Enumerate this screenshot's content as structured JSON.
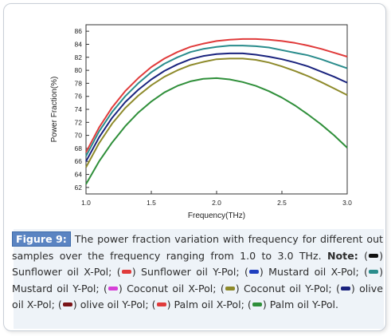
{
  "chart_data": {
    "type": "line",
    "xlabel": "Frequency(THz)",
    "ylabel": "Power Fraction(%)",
    "xlim": [
      1.0,
      3.0
    ],
    "ylim": [
      61,
      87
    ],
    "xticks": [
      1.0,
      1.5,
      2.0,
      2.5,
      3.0
    ],
    "xtick_labels": [
      "1.0",
      "1.5",
      "2.0",
      "2.5",
      "3.0"
    ],
    "yticks": [
      62,
      64,
      66,
      68,
      70,
      72,
      74,
      76,
      78,
      80,
      82,
      84,
      86
    ],
    "ytick_labels": [
      "62",
      "64",
      "66",
      "68",
      "70",
      "72",
      "74",
      "76",
      "78",
      "80",
      "82",
      "84",
      "86"
    ],
    "grid": false,
    "series": [
      {
        "color": "#e03b3b",
        "x": [
          1.0,
          1.1,
          1.2,
          1.3,
          1.4,
          1.5,
          1.6,
          1.7,
          1.8,
          1.9,
          2.0,
          2.1,
          2.2,
          2.3,
          2.4,
          2.5,
          2.6,
          2.7,
          2.8,
          2.9,
          3.0
        ],
        "values": [
          67.4,
          71.2,
          74.3,
          76.8,
          78.8,
          80.5,
          81.8,
          82.8,
          83.6,
          84.1,
          84.5,
          84.7,
          84.8,
          84.8,
          84.7,
          84.5,
          84.2,
          83.8,
          83.3,
          82.7,
          82.1
        ]
      },
      {
        "color": "#2a8c8c",
        "x": [
          1.0,
          1.1,
          1.2,
          1.3,
          1.4,
          1.5,
          1.6,
          1.7,
          1.8,
          1.9,
          2.0,
          2.1,
          2.2,
          2.3,
          2.4,
          2.5,
          2.6,
          2.7,
          2.8,
          2.9,
          3.0
        ],
        "values": [
          66.8,
          70.6,
          73.6,
          76.0,
          78.0,
          79.7,
          81.0,
          82.0,
          82.8,
          83.3,
          83.6,
          83.8,
          83.8,
          83.7,
          83.5,
          83.1,
          82.7,
          82.3,
          81.7,
          81.0,
          80.3
        ]
      },
      {
        "color": "#1a237e",
        "x": [
          1.0,
          1.1,
          1.2,
          1.3,
          1.4,
          1.5,
          1.6,
          1.7,
          1.8,
          1.9,
          2.0,
          2.1,
          2.2,
          2.3,
          2.4,
          2.5,
          2.6,
          2.7,
          2.8,
          2.9,
          3.0
        ],
        "values": [
          66.0,
          69.7,
          72.7,
          75.1,
          77.0,
          78.6,
          79.9,
          80.9,
          81.7,
          82.2,
          82.5,
          82.6,
          82.6,
          82.4,
          82.1,
          81.7,
          81.2,
          80.6,
          79.8,
          79.0,
          78.1
        ]
      },
      {
        "color": "#8e8a2b",
        "x": [
          1.0,
          1.1,
          1.2,
          1.3,
          1.4,
          1.5,
          1.6,
          1.7,
          1.8,
          1.9,
          2.0,
          2.1,
          2.2,
          2.3,
          2.4,
          2.5,
          2.6,
          2.7,
          2.8,
          2.9,
          3.0
        ],
        "values": [
          65.1,
          68.8,
          71.8,
          74.2,
          76.1,
          77.7,
          79.0,
          80.0,
          80.8,
          81.3,
          81.7,
          81.8,
          81.8,
          81.6,
          81.2,
          80.6,
          79.9,
          79.1,
          78.2,
          77.2,
          76.2
        ]
      },
      {
        "color": "#2f8f3a",
        "x": [
          1.0,
          1.1,
          1.2,
          1.3,
          1.4,
          1.5,
          1.6,
          1.7,
          1.8,
          1.9,
          2.0,
          2.1,
          2.2,
          2.3,
          2.4,
          2.5,
          2.6,
          2.7,
          2.8,
          2.9,
          3.0
        ],
        "values": [
          62.5,
          66.0,
          68.9,
          71.4,
          73.5,
          75.2,
          76.6,
          77.6,
          78.3,
          78.7,
          78.8,
          78.6,
          78.2,
          77.6,
          76.8,
          75.8,
          74.6,
          73.2,
          71.7,
          70.0,
          68.1
        ]
      }
    ]
  },
  "caption": {
    "fig_label": "Figure 9:",
    "text_1": " The power fraction variation with frequency for different out samples over the frequency ranging from 1.0 to 3.0 THz. ",
    "note_label": "Note:",
    "items": [
      {
        "color": "#111111",
        "text": " Sunflower oil X-Pol; "
      },
      {
        "color": "#e03b3b",
        "text": " Sunflower oil Y-Pol; "
      },
      {
        "color": "#1f3fbf",
        "text": " Mustard oil X-Pol; "
      },
      {
        "color": "#2a8c8c",
        "text": " Mustard oil Y-Pol; "
      },
      {
        "color": "#d640d6",
        "text": " Coconut oil X-Pol; "
      },
      {
        "color": "#8e8a2b",
        "text": " Coconut oil Y-Pol; "
      },
      {
        "color": "#1a237e",
        "text": " olive oil X-Pol; "
      },
      {
        "color": "#7a1418",
        "text": " olive oil Y-Pol; "
      },
      {
        "color": "#e03b3b",
        "text": " Palm oil X-Pol; "
      },
      {
        "color": "#2f8f3a",
        "text": " Palm oil Y-Pol."
      }
    ]
  }
}
